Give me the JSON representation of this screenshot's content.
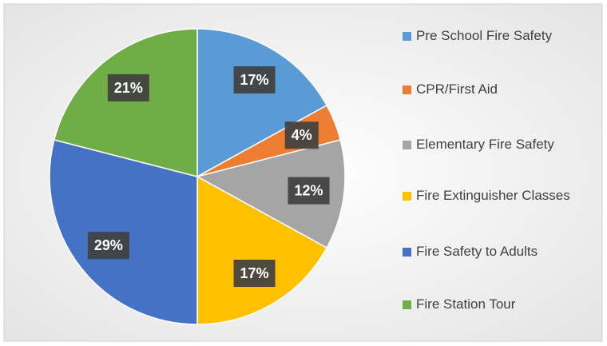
{
  "chart_data": {
    "type": "pie",
    "categories": [
      "Pre School Fire Safety",
      "CPR/First Aid",
      "Elementary Fire Safety",
      "Fire Extinguisher Classes",
      "Fire Safety to Adults",
      "Fire Station Tour"
    ],
    "values": [
      17,
      4,
      12,
      17,
      29,
      21
    ],
    "value_labels": [
      "17%",
      "4%",
      "12%",
      "17%",
      "29%",
      "21%"
    ],
    "colors": [
      "#5b9bd5",
      "#ed7d31",
      "#a5a5a5",
      "#ffc000",
      "#4472c4",
      "#70ad47"
    ],
    "legend": "right"
  }
}
